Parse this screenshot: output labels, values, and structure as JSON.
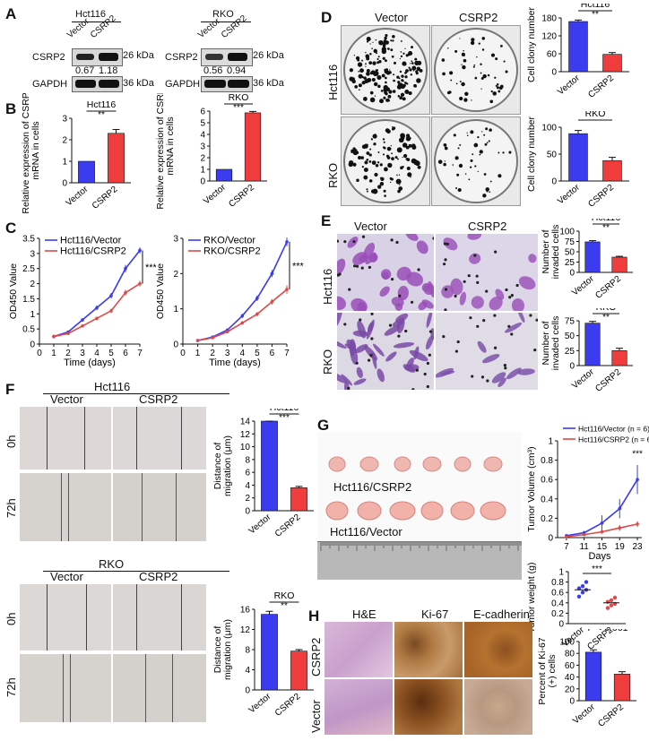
{
  "panels": {
    "A": {
      "letter": "A",
      "hct116": {
        "title": "Hct116",
        "lanes": [
          "Vector",
          "CSRP2"
        ],
        "rows": [
          "CSRP2",
          "GAPDH"
        ],
        "kda": [
          "26 kDa",
          "36 kDa"
        ],
        "ratios": [
          "0.67",
          "1.18"
        ]
      },
      "rko": {
        "title": "RKO",
        "lanes": [
          "Vector",
          "CSRP2"
        ],
        "rows": [
          "CSRP2",
          "GAPDH"
        ],
        "kda": [
          "26 kDa",
          "36 kDa"
        ],
        "ratios": [
          "0.56",
          "0.94"
        ]
      }
    },
    "B": {
      "letter": "B"
    },
    "C": {
      "letter": "C"
    },
    "D": {
      "letter": "D",
      "col_labels": [
        "Vector",
        "CSRP2"
      ],
      "row_labels": [
        "Hct116",
        "RKO"
      ]
    },
    "E": {
      "letter": "E",
      "col_labels": [
        "Vector",
        "CSRP2"
      ],
      "row_labels": [
        "Hct116",
        "RKO"
      ]
    },
    "F": {
      "letter": "F",
      "top_title": "Hct116",
      "bottom_title": "RKO",
      "col_labels": [
        "Vector",
        "CSRP2"
      ],
      "row_labels": [
        "0h",
        "72h"
      ]
    },
    "G": {
      "letter": "G",
      "photo_labels": [
        "Hct116/CSRP2",
        "Hct116/Vector"
      ]
    },
    "H": {
      "letter": "H",
      "col_labels": [
        "H&E",
        "Ki-67",
        "E-cadherin"
      ],
      "row_labels": [
        "CSRP2",
        "Vector"
      ]
    }
  },
  "chart_data": [
    {
      "id": "B-hct116",
      "type": "bar",
      "title": "Hct116",
      "ylabel": "Relative expression of CSRP2 mRNA in cells",
      "categories": [
        "Vector",
        "CSRP2"
      ],
      "values": [
        1.0,
        2.3
      ],
      "errors": [
        0,
        0.18
      ],
      "ylim": [
        0,
        3
      ],
      "yticks": [
        0,
        1,
        2,
        3
      ],
      "significance": "**",
      "colors": [
        "#3b3bf0",
        "#f03c3c"
      ]
    },
    {
      "id": "B-rko",
      "type": "bar",
      "title": "RKO",
      "ylabel": "Relative expression of CSRP2 mRNA in cells",
      "categories": [
        "Vector",
        "CSRP2"
      ],
      "values": [
        1.0,
        5.85
      ],
      "errors": [
        0,
        0.12
      ],
      "ylim": [
        0,
        6
      ],
      "yticks": [
        0,
        1,
        2,
        3,
        4,
        5,
        6
      ],
      "significance": "***",
      "colors": [
        "#3b3bf0",
        "#f03c3c"
      ]
    },
    {
      "id": "C-hct116",
      "type": "line",
      "xlabel": "Time (days)",
      "ylabel": "OD450 Value",
      "x": [
        1,
        2,
        3,
        4,
        5,
        6,
        7
      ],
      "xlim": [
        0,
        7
      ],
      "ylim": [
        0,
        3.5
      ],
      "yticks": [
        0.0,
        0.5,
        1.0,
        1.5,
        2.0,
        2.5,
        3.0,
        3.5
      ],
      "significance": "***",
      "legend_placement": "top-left",
      "series": [
        {
          "name": "Hct116/Vector",
          "color": "#3b3bf0",
          "values": [
            0.25,
            0.4,
            0.8,
            1.2,
            1.6,
            2.5,
            3.1
          ],
          "errors": [
            0.02,
            0.03,
            0.06,
            0.08,
            0.09,
            0.12,
            0.1
          ]
        },
        {
          "name": "Hct116/CSRP2",
          "color": "#e04848",
          "values": [
            0.25,
            0.35,
            0.6,
            0.85,
            1.1,
            1.7,
            2.0
          ],
          "errors": [
            0.02,
            0.03,
            0.05,
            0.06,
            0.07,
            0.1,
            0.09
          ]
        }
      ]
    },
    {
      "id": "C-rko",
      "type": "line",
      "xlabel": "Time (days)",
      "ylabel": "OD450 Value",
      "x": [
        1,
        2,
        3,
        4,
        5,
        6,
        7
      ],
      "xlim": [
        0,
        7
      ],
      "ylim": [
        0,
        3
      ],
      "yticks": [
        0,
        1,
        2,
        3
      ],
      "significance": "***",
      "legend_placement": "top-left",
      "series": [
        {
          "name": "RKO/Vector",
          "color": "#3b3bf0",
          "values": [
            0.1,
            0.2,
            0.4,
            0.8,
            1.3,
            2.0,
            2.9
          ],
          "errors": [
            0.02,
            0.03,
            0.04,
            0.06,
            0.08,
            0.1,
            0.12
          ]
        },
        {
          "name": "RKO/CSRP2",
          "color": "#e04848",
          "values": [
            0.1,
            0.18,
            0.35,
            0.6,
            0.85,
            1.2,
            1.55
          ],
          "errors": [
            0.02,
            0.03,
            0.04,
            0.05,
            0.06,
            0.08,
            0.12
          ]
        }
      ]
    },
    {
      "id": "D-hct116",
      "type": "bar",
      "title": "Hct116",
      "ylabel": "Cell clony number",
      "categories": [
        "Vector",
        "CSRP2"
      ],
      "values": [
        168,
        58
      ],
      "errors": [
        5,
        6
      ],
      "ylim": [
        0,
        180
      ],
      "yticks": [
        0,
        60,
        120,
        180
      ],
      "significance": "**",
      "colors": [
        "#3b3bf0",
        "#f03c3c"
      ]
    },
    {
      "id": "D-rko",
      "type": "bar",
      "title": "RKO",
      "ylabel": "Cell clony number",
      "categories": [
        "Vector",
        "CSRP2"
      ],
      "values": [
        88,
        38
      ],
      "errors": [
        6,
        6
      ],
      "ylim": [
        0,
        100
      ],
      "yticks": [
        0,
        50,
        100
      ],
      "significance": "",
      "colors": [
        "#3b3bf0",
        "#f03c3c"
      ]
    },
    {
      "id": "E-hct116",
      "type": "bar",
      "title": "Hct116",
      "ylabel": "Number of invaded cells",
      "categories": [
        "Vector",
        "CSRP2"
      ],
      "values": [
        74,
        37
      ],
      "errors": [
        3,
        2
      ],
      "ylim": [
        0,
        100
      ],
      "yticks": [
        0,
        25,
        50,
        75,
        100
      ],
      "significance": "**",
      "colors": [
        "#3b3bf0",
        "#f03c3c"
      ]
    },
    {
      "id": "E-rko",
      "type": "bar",
      "title": "RKO",
      "ylabel": "Number of invaded cells",
      "categories": [
        "Vector",
        "CSRP2"
      ],
      "values": [
        71,
        25
      ],
      "errors": [
        3,
        4
      ],
      "ylim": [
        0,
        75
      ],
      "yticks": [
        0,
        25,
        50,
        75
      ],
      "significance": "**",
      "colors": [
        "#3b3bf0",
        "#f03c3c"
      ]
    },
    {
      "id": "F-hct116",
      "type": "bar",
      "title": "Hct116",
      "ylabel": "Distance of migration (μm)",
      "categories": [
        "Vector",
        "CSRP2"
      ],
      "values": [
        14.2,
        3.6
      ],
      "errors": [
        0.3,
        0.2
      ],
      "ylim": [
        0,
        14
      ],
      "yticks": [
        0,
        2,
        4,
        6,
        8,
        10,
        12,
        14
      ],
      "significance": "***",
      "colors": [
        "#3b3bf0",
        "#f03c3c"
      ]
    },
    {
      "id": "F-rko",
      "type": "bar",
      "title": "RKO",
      "ylabel": "Distance of migration (μm)",
      "categories": [
        "Vector",
        "CSRP2"
      ],
      "values": [
        15.0,
        7.7
      ],
      "errors": [
        0.6,
        0.3
      ],
      "ylim": [
        0,
        16
      ],
      "yticks": [
        0,
        4,
        8,
        12,
        16
      ],
      "significance": "**",
      "colors": [
        "#3b3bf0",
        "#f03c3c"
      ]
    },
    {
      "id": "G-volume",
      "type": "line",
      "xlabel": "Days",
      "ylabel": "Tumor Volume (cm³)",
      "x": [
        7,
        11,
        15,
        19,
        23
      ],
      "xlim": [
        5,
        24
      ],
      "ylim": [
        0,
        1.0
      ],
      "yticks": [
        0.0,
        0.2,
        0.4,
        0.6,
        0.8,
        1.0
      ],
      "significance": "***",
      "legend_placement": "top",
      "series": [
        {
          "name": "Hct116/Vector (n = 6)",
          "color": "#3b3bf0",
          "values": [
            0.02,
            0.05,
            0.15,
            0.3,
            0.6
          ],
          "errors": [
            0.01,
            0.02,
            0.08,
            0.1,
            0.15
          ]
        },
        {
          "name": "Hct116/CSRP2 (n = 6)",
          "color": "#e04848",
          "values": [
            0.01,
            0.03,
            0.06,
            0.1,
            0.14
          ],
          "errors": [
            0.01,
            0.01,
            0.02,
            0.03,
            0.03
          ]
        }
      ]
    },
    {
      "id": "G-weight",
      "type": "scatter",
      "ylabel": "Tumor weight (g)",
      "categories": [
        "Vector",
        "CSRP2"
      ],
      "ylim": [
        0,
        1.0
      ],
      "yticks": [
        0.0,
        0.2,
        0.4,
        0.6,
        0.8,
        1.0
      ],
      "significance": "***",
      "series": [
        {
          "name": "Vector",
          "color": "#3b3bf0",
          "values": [
            0.52,
            0.6,
            0.65,
            0.68,
            0.72,
            0.8
          ],
          "mean": 0.65
        },
        {
          "name": "CSRP2",
          "color": "#e04848",
          "values": [
            0.3,
            0.35,
            0.38,
            0.42,
            0.45,
            0.5
          ],
          "mean": 0.4
        }
      ]
    },
    {
      "id": "H-ki67",
      "type": "bar",
      "ylabel": "Percent of Ki-67 (+) cells",
      "annotation": "P < 0.001",
      "categories": [
        "Vector",
        "CSRP2"
      ],
      "values": [
        82,
        45
      ],
      "errors": [
        4,
        4
      ],
      "ylim": [
        0,
        100
      ],
      "yticks": [
        0,
        20,
        40,
        60,
        80,
        100
      ],
      "colors": [
        "#3b3bf0",
        "#f03c3c"
      ]
    }
  ]
}
